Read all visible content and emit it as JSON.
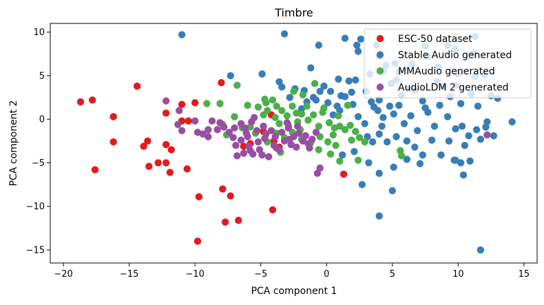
{
  "chart_data": {
    "type": "scatter",
    "title": "Timbre",
    "xlabel": "PCA component 1",
    "ylabel": "PCA component 2",
    "xlim": [
      -21,
      16
    ],
    "ylim": [
      -16.5,
      11
    ],
    "xticks": [
      -20,
      -15,
      -10,
      -5,
      0,
      5,
      10,
      15
    ],
    "yticks": [
      -15,
      -10,
      -5,
      0,
      5,
      10
    ],
    "xtick_labels": [
      "−20",
      "−15",
      "−10",
      "−5",
      "0",
      "5",
      "10",
      "15"
    ],
    "ytick_labels": [
      "−15",
      "−10",
      "−5",
      "0",
      "5",
      "10"
    ],
    "grid": false,
    "legend_position": "top-right",
    "series": [
      {
        "name": "Stable Audio generated",
        "color": "#377eb8",
        "points": [
          [
            -11,
            9.7
          ],
          [
            -3.2,
            9.8
          ],
          [
            -0.6,
            8.5
          ],
          [
            1.4,
            9.3
          ],
          [
            2.3,
            8.5
          ],
          [
            2.6,
            9.2
          ],
          [
            2.4,
            7.8
          ],
          [
            3.8,
            8.5
          ],
          [
            4.0,
            7.2
          ],
          [
            5.2,
            6.4
          ],
          [
            4.3,
            5.5
          ],
          [
            5.5,
            5.4
          ],
          [
            6.5,
            6.3
          ],
          [
            7.5,
            8.4
          ],
          [
            7.7,
            7.2
          ],
          [
            8.5,
            6.0
          ],
          [
            9.2,
            8.5
          ],
          [
            9.8,
            8.0
          ],
          [
            10.0,
            5.2
          ],
          [
            11.3,
            9.5
          ],
          [
            11.2,
            7.6
          ],
          [
            11.3,
            4.9
          ],
          [
            12.5,
            2.7
          ],
          [
            13.0,
            2.4
          ],
          [
            12.0,
            5.1
          ],
          [
            -7.3,
            5.0
          ],
          [
            -4.9,
            5.2
          ],
          [
            -3.6,
            4.3
          ],
          [
            -3.4,
            3.7
          ],
          [
            -1.7,
            3.3
          ],
          [
            -1.2,
            5.9
          ],
          [
            -1.0,
            2.5
          ],
          [
            -0.2,
            3.8
          ],
          [
            -0.5,
            3.2
          ],
          [
            0.3,
            3.2
          ],
          [
            0.9,
            4.6
          ],
          [
            1.1,
            2.7
          ],
          [
            1.7,
            4.4
          ],
          [
            2.2,
            4.5
          ],
          [
            3.0,
            3.2
          ],
          [
            3.3,
            5.2
          ],
          [
            4.0,
            2.2
          ],
          [
            4.5,
            6.2
          ],
          [
            4.9,
            4.1
          ],
          [
            5.3,
            4.5
          ],
          [
            5.7,
            2.8
          ],
          [
            6.2,
            3.5
          ],
          [
            6.7,
            3.3
          ],
          [
            7.3,
            2.1
          ],
          [
            7.5,
            1.3
          ],
          [
            8.4,
            4.3
          ],
          [
            8.9,
            3.7
          ],
          [
            9.4,
            2.6
          ],
          [
            9.9,
            3.9
          ],
          [
            10.2,
            1.8
          ],
          [
            11.0,
            2.9
          ],
          [
            11.5,
            1.5
          ],
          [
            -1.5,
            2.0
          ],
          [
            -0.8,
            2.2
          ],
          [
            0.5,
            0.5
          ],
          [
            1.0,
            1.0
          ],
          [
            2.0,
            1.7
          ],
          [
            2.4,
            0.3
          ],
          [
            2.9,
            -0.5
          ],
          [
            3.4,
            2.0
          ],
          [
            3.9,
            1.0
          ],
          [
            4.3,
            0.2
          ],
          [
            4.8,
            1.5
          ],
          [
            5.1,
            0.6
          ],
          [
            5.5,
            1.6
          ],
          [
            5.9,
            -0.5
          ],
          [
            6.4,
            0.4
          ],
          [
            6.9,
            -1.3
          ],
          [
            7.7,
            0.8
          ],
          [
            8.2,
            -0.8
          ],
          [
            8.6,
            1.6
          ],
          [
            9.2,
            0.3
          ],
          [
            9.8,
            -1.1
          ],
          [
            10.3,
            -0.8
          ],
          [
            10.8,
            -1.9
          ],
          [
            11.4,
            -1.2
          ],
          [
            12.2,
            -0.3
          ],
          [
            3.1,
            -2.0
          ],
          [
            3.5,
            -2.6
          ],
          [
            4.0,
            -1.7
          ],
          [
            4.6,
            -2.6
          ],
          [
            5.3,
            -2.0
          ],
          [
            6.1,
            -2.5
          ],
          [
            6.7,
            -3.2
          ],
          [
            7.3,
            -4.1
          ],
          [
            8.0,
            -2.4
          ],
          [
            8.7,
            -4.1
          ],
          [
            9.3,
            -2.5
          ],
          [
            9.8,
            -4.7
          ],
          [
            10.5,
            -3.0
          ],
          [
            10.9,
            -4.8
          ],
          [
            11.7,
            -2.3
          ],
          [
            14.1,
            -0.3
          ],
          [
            12.1,
            -0.9
          ],
          [
            12.7,
            -1.9
          ],
          [
            1.2,
            -4.1
          ],
          [
            2.1,
            -3.7
          ],
          [
            3.2,
            -5.0
          ],
          [
            4.0,
            -6.2
          ],
          [
            5.1,
            -5.5
          ],
          [
            6.1,
            -4.6
          ],
          [
            7.1,
            -5.1
          ],
          [
            2.7,
            -7.5
          ],
          [
            5.0,
            -8.2
          ],
          [
            4.0,
            -11.1
          ],
          [
            10.2,
            -5.0
          ],
          [
            10.4,
            -6.4
          ],
          [
            11.7,
            -15.0
          ],
          [
            9.7,
            -4.7
          ],
          [
            -2.4,
            3.5
          ],
          [
            -2.8,
            2.5
          ],
          [
            0.1,
            1.9
          ],
          [
            1.4,
            2.6
          ],
          [
            1.9,
            3.1
          ],
          [
            0.8,
            1.5
          ],
          [
            3.6,
            1.4
          ],
          [
            4.2,
            -0.8
          ],
          [
            -1.9,
            1.2
          ]
        ]
      },
      {
        "name": "ESC-50 dataset",
        "color": "#e41a1c",
        "points": [
          [
            -18.7,
            2.0
          ],
          [
            -17.8,
            2.2
          ],
          [
            -16.2,
            0.3
          ],
          [
            -16.2,
            -2.6
          ],
          [
            -17.6,
            -5.8
          ],
          [
            -14.4,
            3.8
          ],
          [
            -13.6,
            -2.5
          ],
          [
            -13.9,
            -3.1
          ],
          [
            -13.5,
            -5.4
          ],
          [
            -12.8,
            -5.0
          ],
          [
            -12.2,
            -2.9
          ],
          [
            -12.2,
            -5.0
          ],
          [
            -11.8,
            -3.5
          ],
          [
            -11.9,
            -6.1
          ],
          [
            -12.2,
            0.7
          ],
          [
            -11.0,
            1.7
          ],
          [
            -11.0,
            -0.2
          ],
          [
            -10.5,
            -0.2
          ],
          [
            -10.0,
            1.9
          ],
          [
            -10.6,
            -5.7
          ],
          [
            -9.7,
            -8.9
          ],
          [
            -9.8,
            -14.0
          ],
          [
            -8.0,
            4.2
          ],
          [
            -7.9,
            -8.0
          ],
          [
            -7.3,
            -8.8
          ],
          [
            -7.7,
            -11.8
          ],
          [
            -6.7,
            -11.6
          ],
          [
            -4.1,
            -10.4
          ],
          [
            -4.8,
            -1.4
          ],
          [
            -3.6,
            -3.2
          ],
          [
            -4.0,
            -2.5
          ],
          [
            1.3,
            -6.3
          ],
          [
            -5.8,
            -2.8
          ],
          [
            -6.3,
            -3.1
          ],
          [
            -4.2,
            0.5
          ]
        ]
      },
      {
        "name": "MMAudio generated",
        "color": "#4daf4a",
        "points": [
          [
            -9.1,
            1.8
          ],
          [
            -8.1,
            1.8
          ],
          [
            -7.9,
            -0.6
          ],
          [
            -7.6,
            -1.8
          ],
          [
            -6.8,
            3.9
          ],
          [
            -6.0,
            1.6
          ],
          [
            -5.7,
            -0.3
          ],
          [
            -5.2,
            1.4
          ],
          [
            -4.7,
            2.3
          ],
          [
            -4.1,
            2.2
          ],
          [
            -4.5,
            1.0
          ],
          [
            -4.8,
            0.5
          ],
          [
            -3.8,
            1.5
          ],
          [
            -3.4,
            1.0
          ],
          [
            -3.0,
            0.4
          ],
          [
            -2.6,
            1.5
          ],
          [
            -2.3,
            0.7
          ],
          [
            -1.9,
            0.6
          ],
          [
            -1.4,
            -0.1
          ],
          [
            -1.0,
            0.5
          ],
          [
            -0.6,
            -0.8
          ],
          [
            -0.2,
            1.3
          ],
          [
            0.2,
            -0.4
          ],
          [
            0.6,
            -1.0
          ],
          [
            1.0,
            -0.8
          ],
          [
            1.4,
            -1.2
          ],
          [
            1.8,
            -0.7
          ],
          [
            2.2,
            -1.4
          ],
          [
            2.5,
            -2.1
          ],
          [
            2.9,
            -2.6
          ],
          [
            -3.8,
            -1.6
          ],
          [
            -3.2,
            -2.1
          ],
          [
            -2.6,
            -1.5
          ],
          [
            -1.9,
            -2.3
          ],
          [
            -1.2,
            -2.7
          ],
          [
            -0.5,
            -2.0
          ],
          [
            0.1,
            -2.6
          ],
          [
            0.7,
            -3.0
          ],
          [
            -0.6,
            -3.5
          ],
          [
            0.3,
            -4.0
          ],
          [
            1.0,
            -4.8
          ],
          [
            2.4,
            -4.7
          ],
          [
            -0.9,
            4.1
          ],
          [
            -2.5,
            3.2
          ],
          [
            -1.5,
            1.5
          ],
          [
            5.6,
            -3.6
          ],
          [
            5.7,
            -4.2
          ],
          [
            -3.5,
            -3.8
          ],
          [
            -4.5,
            -2.6
          ],
          [
            -5.4,
            -1.6
          ],
          [
            -6.4,
            -1.0
          ],
          [
            -2.9,
            -0.7
          ],
          [
            -2.0,
            -1.2
          ],
          [
            -3.9,
            0.2
          ],
          [
            0.9,
            0.4
          ],
          [
            1.6,
            1.6
          ],
          [
            -1.8,
            2.8
          ],
          [
            -4.6,
            1.9
          ],
          [
            -5.8,
            -0.9
          ],
          [
            -7.0,
            0.3
          ],
          [
            -3.6,
            -0.5
          ],
          [
            -2.2,
            -0.3
          ],
          [
            -0.3,
            0.8
          ],
          [
            0.5,
            -1.8
          ],
          [
            1.9,
            -2.4
          ]
        ]
      },
      {
        "name": "AudioLDM 2 generated",
        "color": "#984ea3",
        "points": [
          [
            -12.2,
            2.1
          ],
          [
            -11.2,
            1.0
          ],
          [
            -11.0,
            -1.3
          ],
          [
            -11.3,
            -0.6
          ],
          [
            -10.0,
            -0.2
          ],
          [
            -9.8,
            -1.5
          ],
          [
            -9.4,
            -1.7
          ],
          [
            -9.0,
            -1.2
          ],
          [
            -9.0,
            -2.0
          ],
          [
            -8.7,
            -0.2
          ],
          [
            -8.1,
            -0.4
          ],
          [
            -8.3,
            -1.2
          ],
          [
            -7.4,
            -1.5
          ],
          [
            -7.1,
            -2.1
          ],
          [
            -6.9,
            -3.0
          ],
          [
            -6.5,
            -2.4
          ],
          [
            -6.8,
            -4.2
          ],
          [
            -6.2,
            -1.0
          ],
          [
            -6.0,
            -2.0
          ],
          [
            -5.9,
            -3.1
          ],
          [
            -5.6,
            -4.0
          ],
          [
            -5.7,
            -0.3
          ],
          [
            -5.3,
            -1.3
          ],
          [
            -5.2,
            -2.6
          ],
          [
            -5.1,
            -3.5
          ],
          [
            -4.8,
            -0.8
          ],
          [
            -4.7,
            -2.2
          ],
          [
            -4.4,
            -4.3
          ],
          [
            -4.2,
            -1.3
          ],
          [
            -4.0,
            -3.0
          ],
          [
            -3.9,
            -2.0
          ],
          [
            -3.6,
            -3.5
          ],
          [
            -3.4,
            -1.5
          ],
          [
            -3.2,
            -2.5
          ],
          [
            -2.9,
            -1.0
          ],
          [
            -2.7,
            -2.9
          ],
          [
            -2.5,
            -2.0
          ],
          [
            -2.3,
            -3.2
          ],
          [
            -2.1,
            -1.6
          ],
          [
            -1.8,
            -2.5
          ],
          [
            -1.6,
            -1.9
          ],
          [
            -1.3,
            -3.3
          ],
          [
            -1.1,
            -2.3
          ],
          [
            -0.8,
            -1.5
          ],
          [
            -0.5,
            -5.6
          ],
          [
            -0.7,
            -6.2
          ],
          [
            -6.5,
            -0.5
          ],
          [
            -5.5,
            0.2
          ],
          [
            -7.8,
            -0.9
          ],
          [
            -4.6,
            -1.7
          ],
          [
            -3.0,
            -0.4
          ],
          [
            -2.2,
            -0.8
          ],
          [
            -4.9,
            -4.1
          ],
          [
            -5.8,
            -3.6
          ],
          [
            -6.3,
            -3.9
          ],
          [
            -3.8,
            -3.3
          ],
          [
            -2.8,
            -2.3
          ],
          [
            -1.4,
            -2.8
          ],
          [
            12.2,
            -1.8
          ],
          [
            -6.1,
            -1.6
          ],
          [
            -7.0,
            -1.0
          ]
        ]
      }
    ],
    "legend_order": [
      "ESC-50 dataset",
      "Stable Audio generated",
      "MMAudio generated",
      "AudioLDM 2 generated"
    ]
  }
}
